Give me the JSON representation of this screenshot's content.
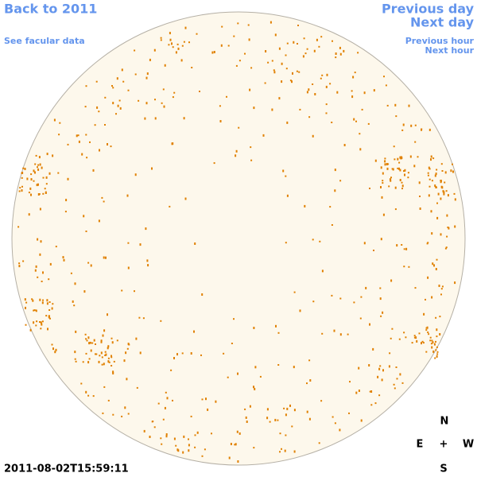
{
  "nav": {
    "back": "Back to 2011",
    "facular": "See facular data",
    "previous_day": "Previous day",
    "next_day": "Next day",
    "previous_hour": "Previous hour",
    "next_hour": "Next hour"
  },
  "timestamp": "2011-08-02T15:59:11",
  "compass": {
    "north": "N",
    "east": "E",
    "center": "+",
    "west": "W",
    "south": "S"
  }
}
